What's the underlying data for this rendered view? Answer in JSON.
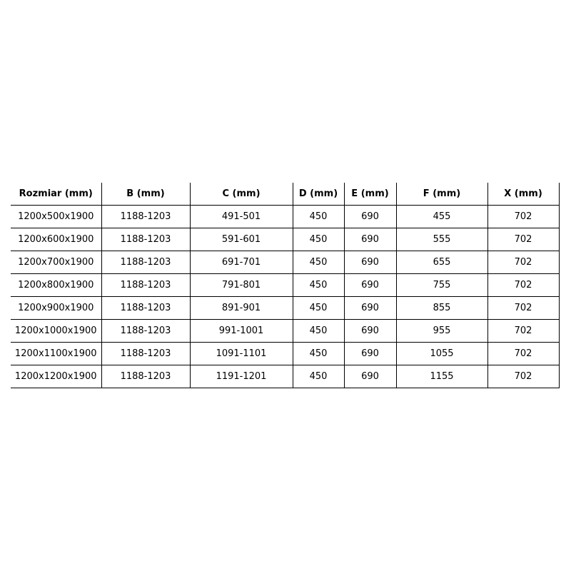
{
  "table": {
    "headers": [
      "Rozmiar (mm)",
      "B (mm)",
      "C (mm)",
      "D (mm)",
      "E (mm)",
      "F (mm)",
      "X (mm)"
    ],
    "rows": [
      [
        "1200x500x1900",
        "1188-1203",
        "491-501",
        "450",
        "690",
        "455",
        "702"
      ],
      [
        "1200x600x1900",
        "1188-1203",
        "591-601",
        "450",
        "690",
        "555",
        "702"
      ],
      [
        "1200x700x1900",
        "1188-1203",
        "691-701",
        "450",
        "690",
        "655",
        "702"
      ],
      [
        "1200x800x1900",
        "1188-1203",
        "791-801",
        "450",
        "690",
        "755",
        "702"
      ],
      [
        "1200x900x1900",
        "1188-1203",
        "891-901",
        "450",
        "690",
        "855",
        "702"
      ],
      [
        "1200x1000x1900",
        "1188-1203",
        "991-1001",
        "450",
        "690",
        "955",
        "702"
      ],
      [
        "1200x1100x1900",
        "1188-1203",
        "1091-1101",
        "450",
        "690",
        "1055",
        "702"
      ],
      [
        "1200x1200x1900",
        "1188-1203",
        "1191-1201",
        "450",
        "690",
        "1155",
        "702"
      ]
    ]
  }
}
